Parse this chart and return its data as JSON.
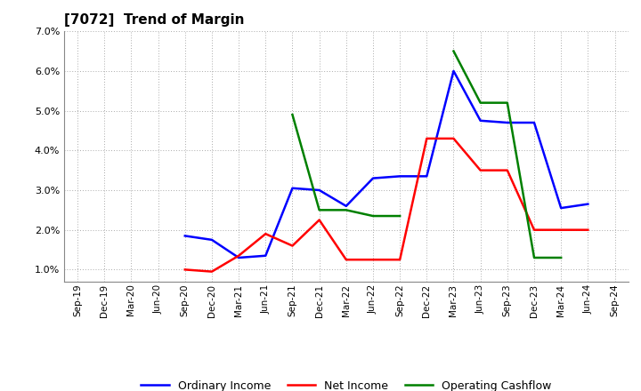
{
  "title": "[7072]  Trend of Margin",
  "x_labels": [
    "Sep-19",
    "Dec-19",
    "Mar-20",
    "Jun-20",
    "Sep-20",
    "Dec-20",
    "Mar-21",
    "Jun-21",
    "Sep-21",
    "Dec-21",
    "Mar-22",
    "Jun-22",
    "Sep-22",
    "Dec-22",
    "Mar-23",
    "Jun-23",
    "Sep-23",
    "Dec-23",
    "Mar-24",
    "Jun-24",
    "Sep-24"
  ],
  "ordinary_income": [
    null,
    null,
    null,
    null,
    1.85,
    1.75,
    1.3,
    1.35,
    3.05,
    3.0,
    2.6,
    3.3,
    3.35,
    3.35,
    6.0,
    4.75,
    4.7,
    4.7,
    2.55,
    2.65,
    null
  ],
  "net_income": [
    null,
    null,
    null,
    null,
    1.0,
    0.95,
    1.35,
    1.9,
    1.6,
    2.25,
    1.25,
    1.25,
    1.25,
    4.3,
    4.3,
    3.5,
    3.5,
    2.0,
    2.0,
    2.0,
    null
  ],
  "operating_cashflow": [
    null,
    null,
    null,
    null,
    null,
    null,
    null,
    null,
    4.9,
    2.5,
    2.5,
    2.35,
    2.35,
    null,
    6.5,
    5.2,
    5.2,
    1.3,
    1.3,
    null,
    null
  ],
  "ylim": [
    0.7,
    7.0
  ],
  "yticks": [
    1.0,
    2.0,
    3.0,
    4.0,
    5.0,
    6.0,
    7.0
  ],
  "colors": {
    "ordinary_income": "#0000ff",
    "net_income": "#ff0000",
    "operating_cashflow": "#008000"
  },
  "background_color": "#ffffff",
  "grid_color": "#cccccc",
  "linewidth": 1.8
}
